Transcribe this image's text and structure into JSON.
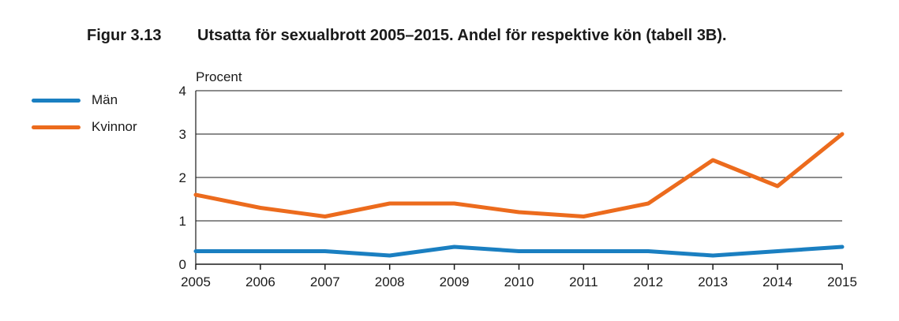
{
  "figure": {
    "number": "Figur 3.13",
    "title": "Utsatta för sexualbrott 2005–2015. Andel för respektive kön (tabell 3B)."
  },
  "chart_data": {
    "type": "line",
    "title": "Utsatta för sexualbrott 2005–2015. Andel för respektive kön (tabell 3B).",
    "xlabel": "",
    "ylabel": "Procent",
    "x": [
      "2005",
      "2006",
      "2007",
      "2008",
      "2009",
      "2010",
      "2011",
      "2012",
      "2013",
      "2014",
      "2015"
    ],
    "ylim": [
      0,
      4
    ],
    "yticks": [
      "0",
      "1",
      "2",
      "3",
      "4"
    ],
    "grid": true,
    "legend_position": "left",
    "series": [
      {
        "name": "Män",
        "color": "#1a7fc1",
        "values": [
          0.3,
          0.3,
          0.3,
          0.2,
          0.4,
          0.3,
          0.3,
          0.3,
          0.2,
          0.3,
          0.4
        ]
      },
      {
        "name": "Kvinnor",
        "color": "#ec6b1d",
        "values": [
          1.6,
          1.3,
          1.1,
          1.4,
          1.4,
          1.2,
          1.1,
          1.4,
          2.4,
          1.8,
          3.0
        ]
      }
    ]
  }
}
